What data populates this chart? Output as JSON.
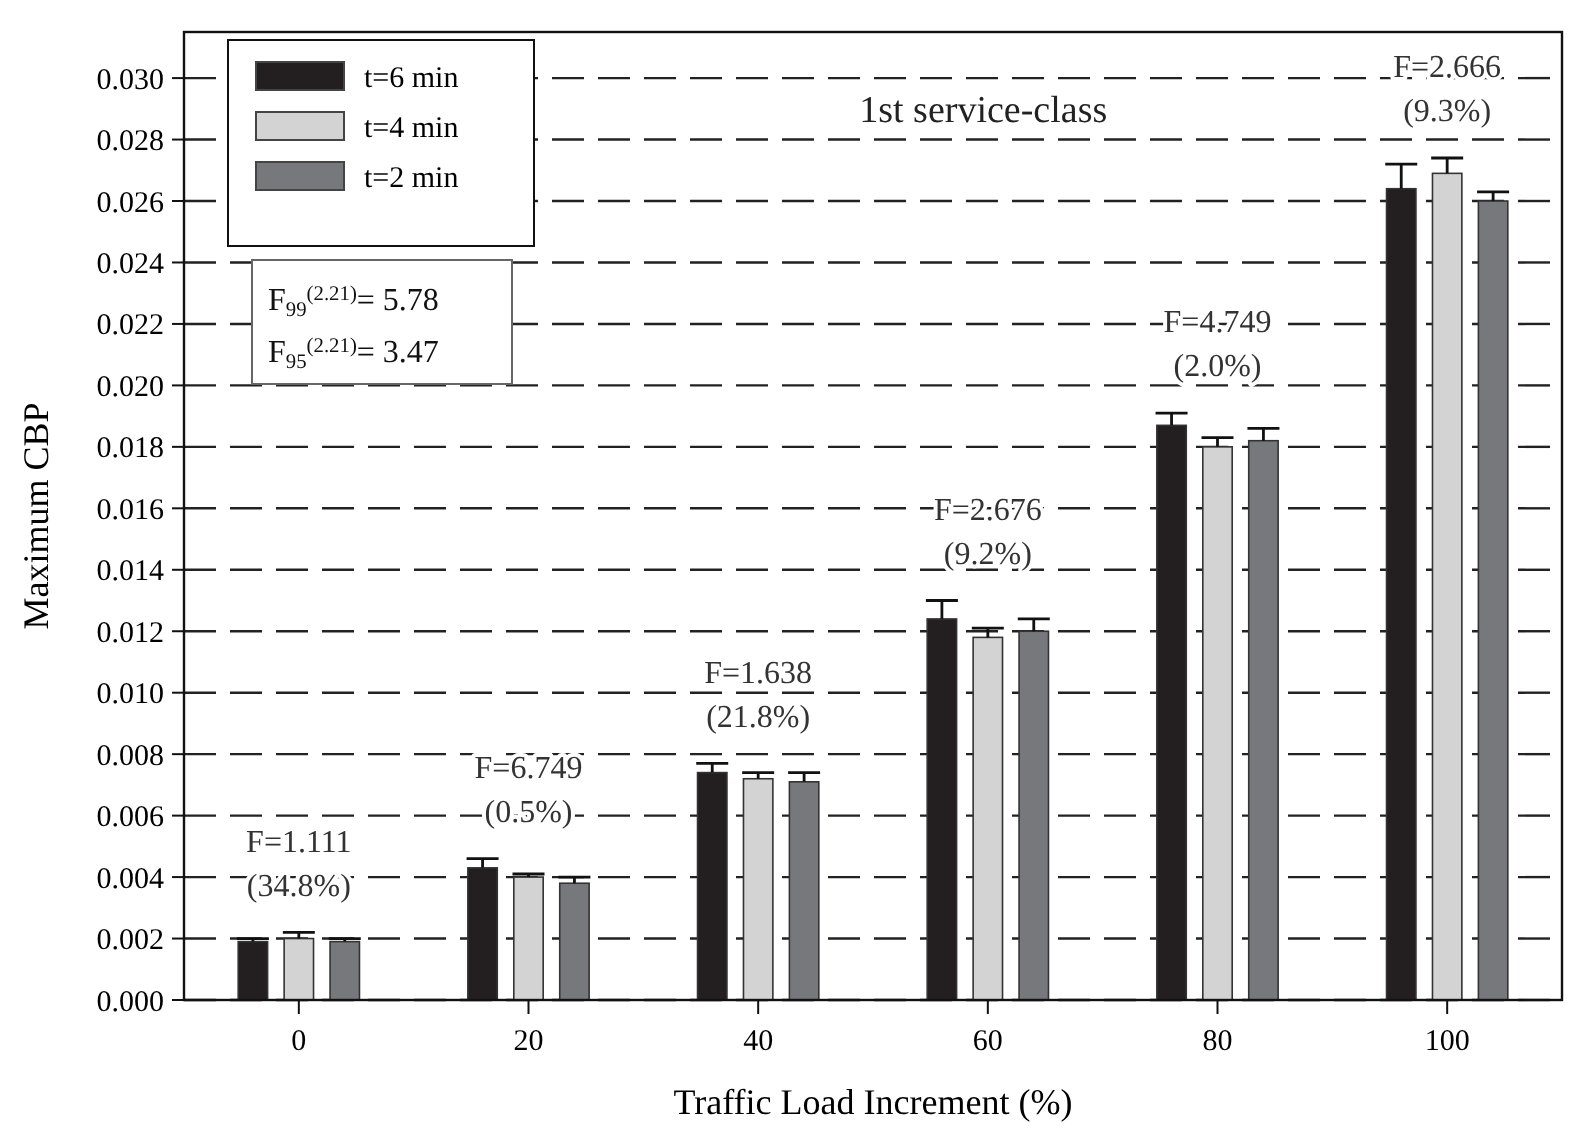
{
  "chart_data": {
    "type": "bar",
    "xlabel": "Traffic Load Increment (%)",
    "ylabel": "Maximum CBP",
    "categories": [
      "0",
      "20",
      "40",
      "60",
      "80",
      "100"
    ],
    "series": [
      {
        "name": "t=6 min",
        "color": "#231f20",
        "values": [
          0.0019,
          0.0043,
          0.0074,
          0.0124,
          0.0187,
          0.0264
        ],
        "errors": [
          [
            0.0019,
            0.002
          ],
          [
            0.0043,
            0.0046
          ],
          [
            0.0074,
            0.0077
          ],
          [
            0.0124,
            0.013
          ],
          [
            0.0187,
            0.0191
          ],
          [
            0.0264,
            0.0272
          ]
        ]
      },
      {
        "name": "t=4 min",
        "color": "#d3d3d3",
        "values": [
          0.002,
          0.004,
          0.0072,
          0.0118,
          0.018,
          0.0269
        ],
        "errors": [
          [
            0.002,
            0.0022
          ],
          [
            0.004,
            0.0041
          ],
          [
            0.0072,
            0.0074
          ],
          [
            0.0118,
            0.0121
          ],
          [
            0.018,
            0.0183
          ],
          [
            0.0269,
            0.0274
          ]
        ]
      },
      {
        "name": "t=2 min",
        "color": "#77787b",
        "values": [
          0.0019,
          0.0038,
          0.0071,
          0.012,
          0.0182,
          0.026
        ],
        "errors": [
          [
            0.0019,
            0.002
          ],
          [
            0.0038,
            0.004
          ],
          [
            0.0071,
            0.0074
          ],
          [
            0.012,
            0.0124
          ],
          [
            0.0182,
            0.0186
          ],
          [
            0.026,
            0.0263
          ]
        ]
      }
    ],
    "ylim": [
      0,
      0.0315
    ],
    "yticks": [
      {
        "value": 0,
        "label": "0.000"
      },
      {
        "value": 0.002,
        "label": "0.002"
      },
      {
        "value": 0.004,
        "label": "0.004"
      },
      {
        "value": 0.006,
        "label": "0.006"
      },
      {
        "value": 0.008,
        "label": "0.008"
      },
      {
        "value": 0.01,
        "label": "0.010"
      },
      {
        "value": 0.012,
        "label": "0.012"
      },
      {
        "value": 0.014,
        "label": "0.014"
      },
      {
        "value": 0.016,
        "label": "0.016"
      },
      {
        "value": 0.018,
        "label": "0.018"
      },
      {
        "value": 0.02,
        "label": "0.020"
      },
      {
        "value": 0.022,
        "label": "0.022"
      },
      {
        "value": 0.024,
        "label": "0.024"
      },
      {
        "value": 0.026,
        "label": "0.026"
      },
      {
        "value": 0.028,
        "label": "0.028"
      },
      {
        "value": 0.03,
        "label": "0.030"
      }
    ],
    "grid": "y",
    "legend": "top left",
    "annotations": [
      "1st service-class",
      "F$_{99}$$^{(2.21)}$= 5.78",
      "F$_{95}$$^{(2.21)}$= 3.47",
      "F=1.111",
      "(34.8%)",
      "F=6.749",
      "(0.5%)",
      "F=1.638",
      "(21.8%)",
      "F=2.676",
      "(9.2%)",
      "F=4.749",
      "(2.0%)",
      "F=2.666",
      "(9.3%)"
    ]
  }
}
